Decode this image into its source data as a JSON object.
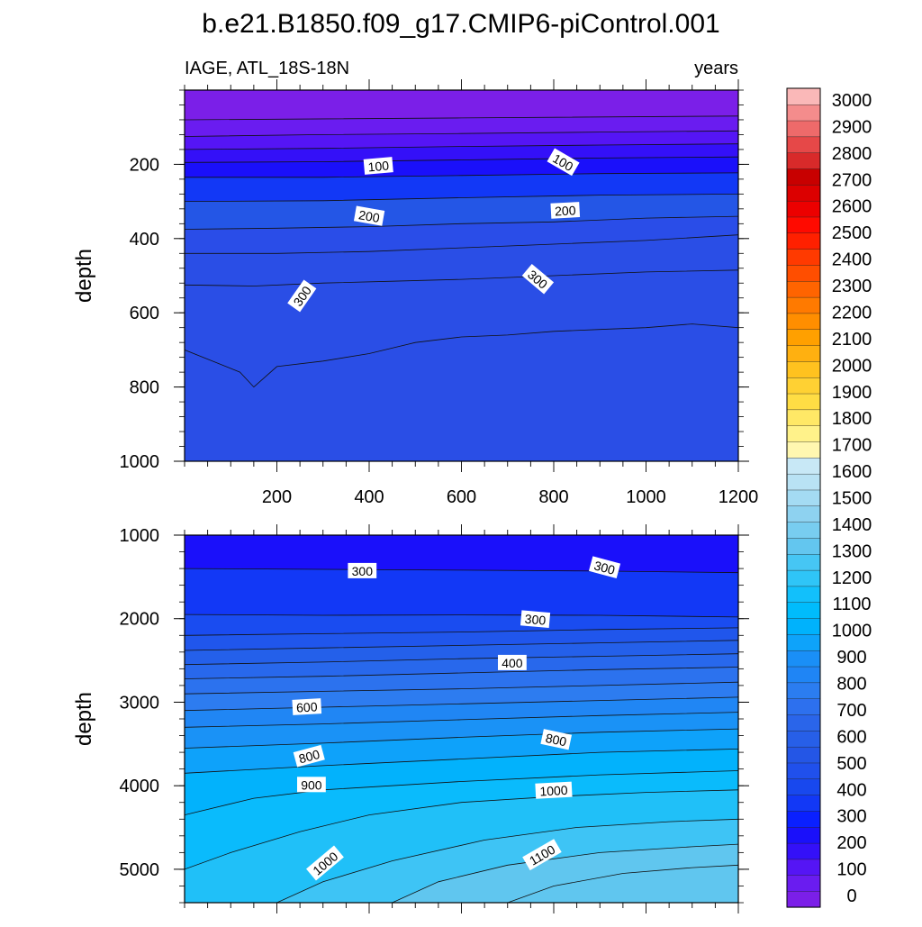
{
  "chart_data": {
    "type": "contour",
    "title": "b.e21.B1850.f09_g17.CMIP6-piControl.001",
    "subtitle_left": "IAGE, ATL_18S-18N",
    "subtitle_right": "years",
    "colorbar": {
      "levels": [
        0,
        100,
        200,
        300,
        400,
        500,
        600,
        700,
        800,
        900,
        1000,
        1100,
        1200,
        1300,
        1400,
        1500,
        1600,
        1700,
        1800,
        1900,
        2000,
        2100,
        2200,
        2300,
        2400,
        2500,
        2600,
        2700,
        2800,
        2900,
        3000
      ],
      "labels": [
        "0",
        "100",
        "200",
        "300",
        "400",
        "500",
        "600",
        "700",
        "800",
        "900",
        "1000",
        "1100",
        "1200",
        "1300",
        "1400",
        "1500",
        "1600",
        "1700",
        "1800",
        "1900",
        "2000",
        "2100",
        "2200",
        "2300",
        "2400",
        "2500",
        "2600",
        "2700",
        "2800",
        "2900",
        "3000"
      ],
      "colors": [
        "#7b1fe8",
        "#6a1cf0",
        "#5515f5",
        "#3410f8",
        "#1a10fa",
        "#0a20ff",
        "#1238f6",
        "#1848ee",
        "#2050ec",
        "#2456e6",
        "#275fe8",
        "#2a65ea",
        "#2d70ee",
        "#2b7df0",
        "#1f85f5",
        "#1a8ff7",
        "#0ea3fa",
        "#00b2fc",
        "#00bcfc",
        "#12c0fb",
        "#2fc5f7",
        "#46c6f4",
        "#63c6ef",
        "#78cdf0",
        "#8ed2f0",
        "#a4dbf3",
        "#b9e2f4",
        "#c8e8f6",
        "#fff7b0",
        "#fff28a",
        "#ffe866",
        "#ffdd44",
        "#ffd133",
        "#ffc21f",
        "#ffb010",
        "#ffa000",
        "#ff8e00",
        "#ff7a00",
        "#ff6400",
        "#ff4e00",
        "#ff3a00",
        "#ff2000",
        "#ff0a00",
        "#ec0000",
        "#dc0000",
        "#c80000",
        "#d82a2a",
        "#e64848",
        "#ee6a6a",
        "#f48c8c",
        "#fab8b8"
      ]
    },
    "panels": [
      {
        "id": "upper",
        "ylabel": "depth",
        "ylim": [
          0,
          1000
        ],
        "xlim": [
          0,
          1200
        ],
        "yticks": [
          200,
          400,
          600,
          800,
          1000
        ],
        "ytick_labels": [
          "200",
          "400",
          "600",
          "800",
          "1000"
        ],
        "xticks": [
          200,
          400,
          600,
          800,
          1000,
          1200
        ],
        "xtick_labels": [
          "200",
          "400",
          "600",
          "800",
          "1000",
          "1200"
        ],
        "band_colors": [
          "#7b1fe8",
          "#6a1cf0",
          "#5515f5",
          "#3410f8",
          "#1a10fa",
          "#1238f6",
          "#2456e6",
          "#2a4de8",
          "#2a4ee6"
        ],
        "contour_depths": [
          [
            [
              0,
              80
            ],
            [
              600,
              75
            ],
            [
              1200,
              70
            ]
          ],
          [
            [
              0,
              125
            ],
            [
              300,
              120
            ],
            [
              600,
              117
            ],
            [
              900,
              113
            ],
            [
              1200,
              110
            ]
          ],
          [
            [
              0,
              160
            ],
            [
              300,
              157
            ],
            [
              600,
              152
            ],
            [
              900,
              148
            ],
            [
              1200,
              145
            ]
          ],
          [
            [
              0,
              195
            ],
            [
              300,
              193
            ],
            [
              600,
              188
            ],
            [
              900,
              183
            ],
            [
              1200,
              180
            ]
          ],
          [
            [
              0,
              235
            ],
            [
              300,
              235
            ],
            [
              600,
              230
            ],
            [
              900,
              225
            ],
            [
              1200,
              223
            ]
          ],
          [
            [
              0,
              300
            ],
            [
              300,
              298
            ],
            [
              600,
              290
            ],
            [
              900,
              283
            ],
            [
              1200,
              280
            ]
          ],
          [
            [
              0,
              375
            ],
            [
              200,
              372
            ],
            [
              400,
              368
            ],
            [
              600,
              360
            ],
            [
              800,
              355
            ],
            [
              1000,
              345
            ],
            [
              1200,
              340
            ]
          ],
          [
            [
              0,
              440
            ],
            [
              200,
              440
            ],
            [
              400,
              435
            ],
            [
              600,
              425
            ],
            [
              800,
              415
            ],
            [
              1000,
              405
            ],
            [
              1200,
              390
            ]
          ],
          [
            [
              0,
              525
            ],
            [
              150,
              528
            ],
            [
              300,
              520
            ],
            [
              450,
              515
            ],
            [
              600,
              510
            ],
            [
              800,
              500
            ],
            [
              1000,
              490
            ],
            [
              1200,
              485
            ]
          ],
          [
            [
              0,
              700
            ],
            [
              60,
              730
            ],
            [
              120,
              760
            ],
            [
              150,
              800
            ],
            [
              200,
              745
            ],
            [
              300,
              730
            ],
            [
              400,
              710
            ],
            [
              500,
              680
            ],
            [
              600,
              665
            ],
            [
              700,
              660
            ],
            [
              800,
              650
            ],
            [
              900,
              645
            ],
            [
              1000,
              640
            ],
            [
              1100,
              630
            ],
            [
              1200,
              640
            ]
          ]
        ],
        "labels": [
          {
            "text": "100",
            "x": 420,
            "depth": 205,
            "angle": -5
          },
          {
            "text": "100",
            "x": 820,
            "depth": 195,
            "angle": 30
          },
          {
            "text": "200",
            "x": 400,
            "depth": 340,
            "angle": 10
          },
          {
            "text": "200",
            "x": 825,
            "depth": 325,
            "angle": -3
          },
          {
            "text": "300",
            "x": 255,
            "depth": 555,
            "angle": -55
          },
          {
            "text": "300",
            "x": 765,
            "depth": 510,
            "angle": 40
          }
        ]
      },
      {
        "id": "lower",
        "ylabel": "depth",
        "ylim": [
          1000,
          5400
        ],
        "xlim": [
          0,
          1200
        ],
        "yticks": [
          1000,
          2000,
          3000,
          4000,
          5000
        ],
        "ytick_labels": [
          "1000",
          "2000",
          "3000",
          "4000",
          "5000"
        ],
        "band_colors": [
          "#1a10fa",
          "#1238f6",
          "#1a4cf0",
          "#2056ec",
          "#2460ea",
          "#2868ec",
          "#2c72ee",
          "#2d7cf0",
          "#2086f4",
          "#1a92f6",
          "#0ea2fa",
          "#02b2fc",
          "#0abbfc",
          "#20c0f8",
          "#3ec4f5",
          "#60c6ef"
        ],
        "contour_depths": [
          [
            [
              0,
              1400
            ],
            [
              300,
              1410
            ],
            [
              600,
              1420
            ],
            [
              900,
              1430
            ],
            [
              1200,
              1450
            ]
          ],
          [
            [
              0,
              1950
            ],
            [
              300,
              1960
            ],
            [
              600,
              1955
            ],
            [
              900,
              1960
            ],
            [
              1200,
              1980
            ]
          ],
          [
            [
              0,
              2200
            ],
            [
              300,
              2180
            ],
            [
              600,
              2160
            ],
            [
              900,
              2130
            ],
            [
              1200,
              2110
            ]
          ],
          [
            [
              0,
              2380
            ],
            [
              300,
              2350
            ],
            [
              600,
              2320
            ],
            [
              900,
              2290
            ],
            [
              1200,
              2260
            ]
          ],
          [
            [
              0,
              2550
            ],
            [
              300,
              2520
            ],
            [
              600,
              2480
            ],
            [
              900,
              2450
            ],
            [
              1200,
              2420
            ]
          ],
          [
            [
              0,
              2720
            ],
            [
              300,
              2690
            ],
            [
              600,
              2650
            ],
            [
              900,
              2610
            ],
            [
              1200,
              2580
            ]
          ],
          [
            [
              0,
              2900
            ],
            [
              300,
              2870
            ],
            [
              600,
              2840
            ],
            [
              900,
              2800
            ],
            [
              1200,
              2760
            ]
          ],
          [
            [
              0,
              3100
            ],
            [
              300,
              3060
            ],
            [
              600,
              3020
            ],
            [
              900,
              2980
            ],
            [
              1200,
              2940
            ]
          ],
          [
            [
              0,
              3300
            ],
            [
              300,
              3260
            ],
            [
              600,
              3210
            ],
            [
              900,
              3160
            ],
            [
              1200,
              3120
            ]
          ],
          [
            [
              0,
              3550
            ],
            [
              300,
              3490
            ],
            [
              600,
              3420
            ],
            [
              900,
              3360
            ],
            [
              1200,
              3320
            ]
          ],
          [
            [
              0,
              3850
            ],
            [
              300,
              3760
            ],
            [
              600,
              3680
            ],
            [
              900,
              3600
            ],
            [
              1200,
              3560
            ]
          ],
          [
            [
              0,
              4350
            ],
            [
              150,
              4150
            ],
            [
              300,
              4050
            ],
            [
              600,
              3950
            ],
            [
              900,
              3870
            ],
            [
              1200,
              3820
            ]
          ],
          [
            [
              0,
              5000
            ],
            [
              100,
              4800
            ],
            [
              250,
              4550
            ],
            [
              400,
              4350
            ],
            [
              600,
              4200
            ],
            [
              800,
              4130
            ],
            [
              1000,
              4080
            ],
            [
              1200,
              4050
            ]
          ],
          [
            [
              200,
              5400
            ],
            [
              300,
              5150
            ],
            [
              450,
              4900
            ],
            [
              650,
              4650
            ],
            [
              850,
              4500
            ],
            [
              1050,
              4430
            ],
            [
              1200,
              4400
            ]
          ],
          [
            [
              450,
              5400
            ],
            [
              550,
              5150
            ],
            [
              700,
              4950
            ],
            [
              900,
              4800
            ],
            [
              1100,
              4730
            ],
            [
              1200,
              4700
            ]
          ],
          [
            [
              700,
              5400
            ],
            [
              800,
              5200
            ],
            [
              950,
              5050
            ],
            [
              1100,
              4980
            ],
            [
              1200,
              4950
            ]
          ]
        ],
        "labels": [
          {
            "text": "300",
            "x": 385,
            "depth": 1430,
            "angle": 0
          },
          {
            "text": "300",
            "x": 910,
            "depth": 1390,
            "angle": 15
          },
          {
            "text": "300",
            "x": 760,
            "depth": 2010,
            "angle": 5
          },
          {
            "text": "400",
            "x": 710,
            "depth": 2530,
            "angle": 0
          },
          {
            "text": "600",
            "x": 265,
            "depth": 3060,
            "angle": -3
          },
          {
            "text": "800",
            "x": 805,
            "depth": 3450,
            "angle": 12
          },
          {
            "text": "800",
            "x": 270,
            "depth": 3650,
            "angle": -15
          },
          {
            "text": "900",
            "x": 275,
            "depth": 3990,
            "angle": 0
          },
          {
            "text": "1000",
            "x": 800,
            "depth": 4060,
            "angle": -3
          },
          {
            "text": "1000",
            "x": 305,
            "depth": 4930,
            "angle": -40
          },
          {
            "text": "1100",
            "x": 775,
            "depth": 4830,
            "angle": -30
          }
        ]
      }
    ]
  }
}
